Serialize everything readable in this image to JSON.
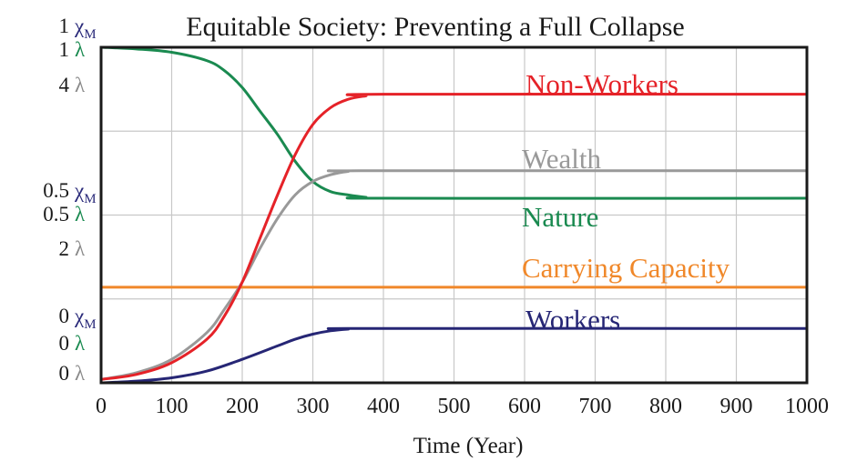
{
  "chart_data": {
    "type": "line",
    "title": "Equitable Society: Preventing a Full Collapse",
    "xlabel": "Time (Year)",
    "xlim": [
      0,
      1000
    ],
    "ylim": [
      0,
      1
    ],
    "grid": true,
    "x_ticks": [
      "0",
      "100",
      "200",
      "300",
      "400",
      "500",
      "600",
      "700",
      "800",
      "900",
      "1000"
    ],
    "y_axis_labels": [
      {
        "level": 1,
        "rows": [
          {
            "value": "1",
            "unit": "χ",
            "sub": "M",
            "color": "#2a2a7a"
          },
          {
            "value": "1",
            "unit": "λ",
            "sub": "",
            "color": "#1a8a50"
          },
          {
            "value": "4",
            "unit": "λ",
            "sub": "",
            "color": "#8a8a8a"
          }
        ]
      },
      {
        "level": 0.5,
        "rows": [
          {
            "value": "0.5",
            "unit": "χ",
            "sub": "M",
            "color": "#2a2a7a"
          },
          {
            "value": "0.5",
            "unit": "λ",
            "sub": "",
            "color": "#1a8a50"
          },
          {
            "value": "2",
            "unit": "λ",
            "sub": "",
            "color": "#8a8a8a"
          }
        ]
      },
      {
        "level": 0,
        "rows": [
          {
            "value": "0",
            "unit": "χ",
            "sub": "M",
            "color": "#2a2a7a"
          },
          {
            "value": "0",
            "unit": "λ",
            "sub": "",
            "color": "#1a8a50"
          },
          {
            "value": "0",
            "unit": "λ",
            "sub": "",
            "color": "#8a8a8a"
          }
        ]
      }
    ],
    "series": [
      {
        "name": "Non-Workers",
        "color": "#e52228",
        "x": [
          0,
          50,
          100,
          150,
          175,
          200,
          225,
          250,
          275,
          300,
          325,
          350,
          375,
          400,
          1000
        ],
        "y": [
          0.01,
          0.025,
          0.06,
          0.13,
          0.2,
          0.3,
          0.43,
          0.56,
          0.68,
          0.77,
          0.82,
          0.845,
          0.855,
          0.86,
          0.86
        ]
      },
      {
        "name": "Wealth",
        "color": "#999999",
        "x": [
          0,
          50,
          100,
          150,
          175,
          200,
          225,
          250,
          275,
          300,
          325,
          350,
          375,
          1000
        ],
        "y": [
          0.01,
          0.03,
          0.07,
          0.15,
          0.22,
          0.3,
          0.4,
          0.49,
          0.56,
          0.6,
          0.62,
          0.63,
          0.632,
          0.632
        ]
      },
      {
        "name": "Nature",
        "color": "#1a8a50",
        "x": [
          0,
          50,
          100,
          150,
          175,
          200,
          225,
          250,
          275,
          300,
          325,
          350,
          375,
          400,
          1000
        ],
        "y": [
          1.0,
          0.995,
          0.985,
          0.96,
          0.93,
          0.88,
          0.81,
          0.74,
          0.66,
          0.6,
          0.57,
          0.56,
          0.553,
          0.55,
          0.55
        ]
      },
      {
        "name": "Carrying Capacity",
        "color": "#f0882a",
        "x": [
          0,
          1000
        ],
        "y": [
          0.285,
          0.285
        ]
      },
      {
        "name": "Workers",
        "color": "#262675",
        "x": [
          0,
          50,
          100,
          150,
          200,
          250,
          275,
          300,
          325,
          350,
          375,
          1000
        ],
        "y": [
          0.0,
          0.005,
          0.015,
          0.035,
          0.07,
          0.11,
          0.13,
          0.145,
          0.155,
          0.16,
          0.162,
          0.162
        ]
      }
    ]
  }
}
